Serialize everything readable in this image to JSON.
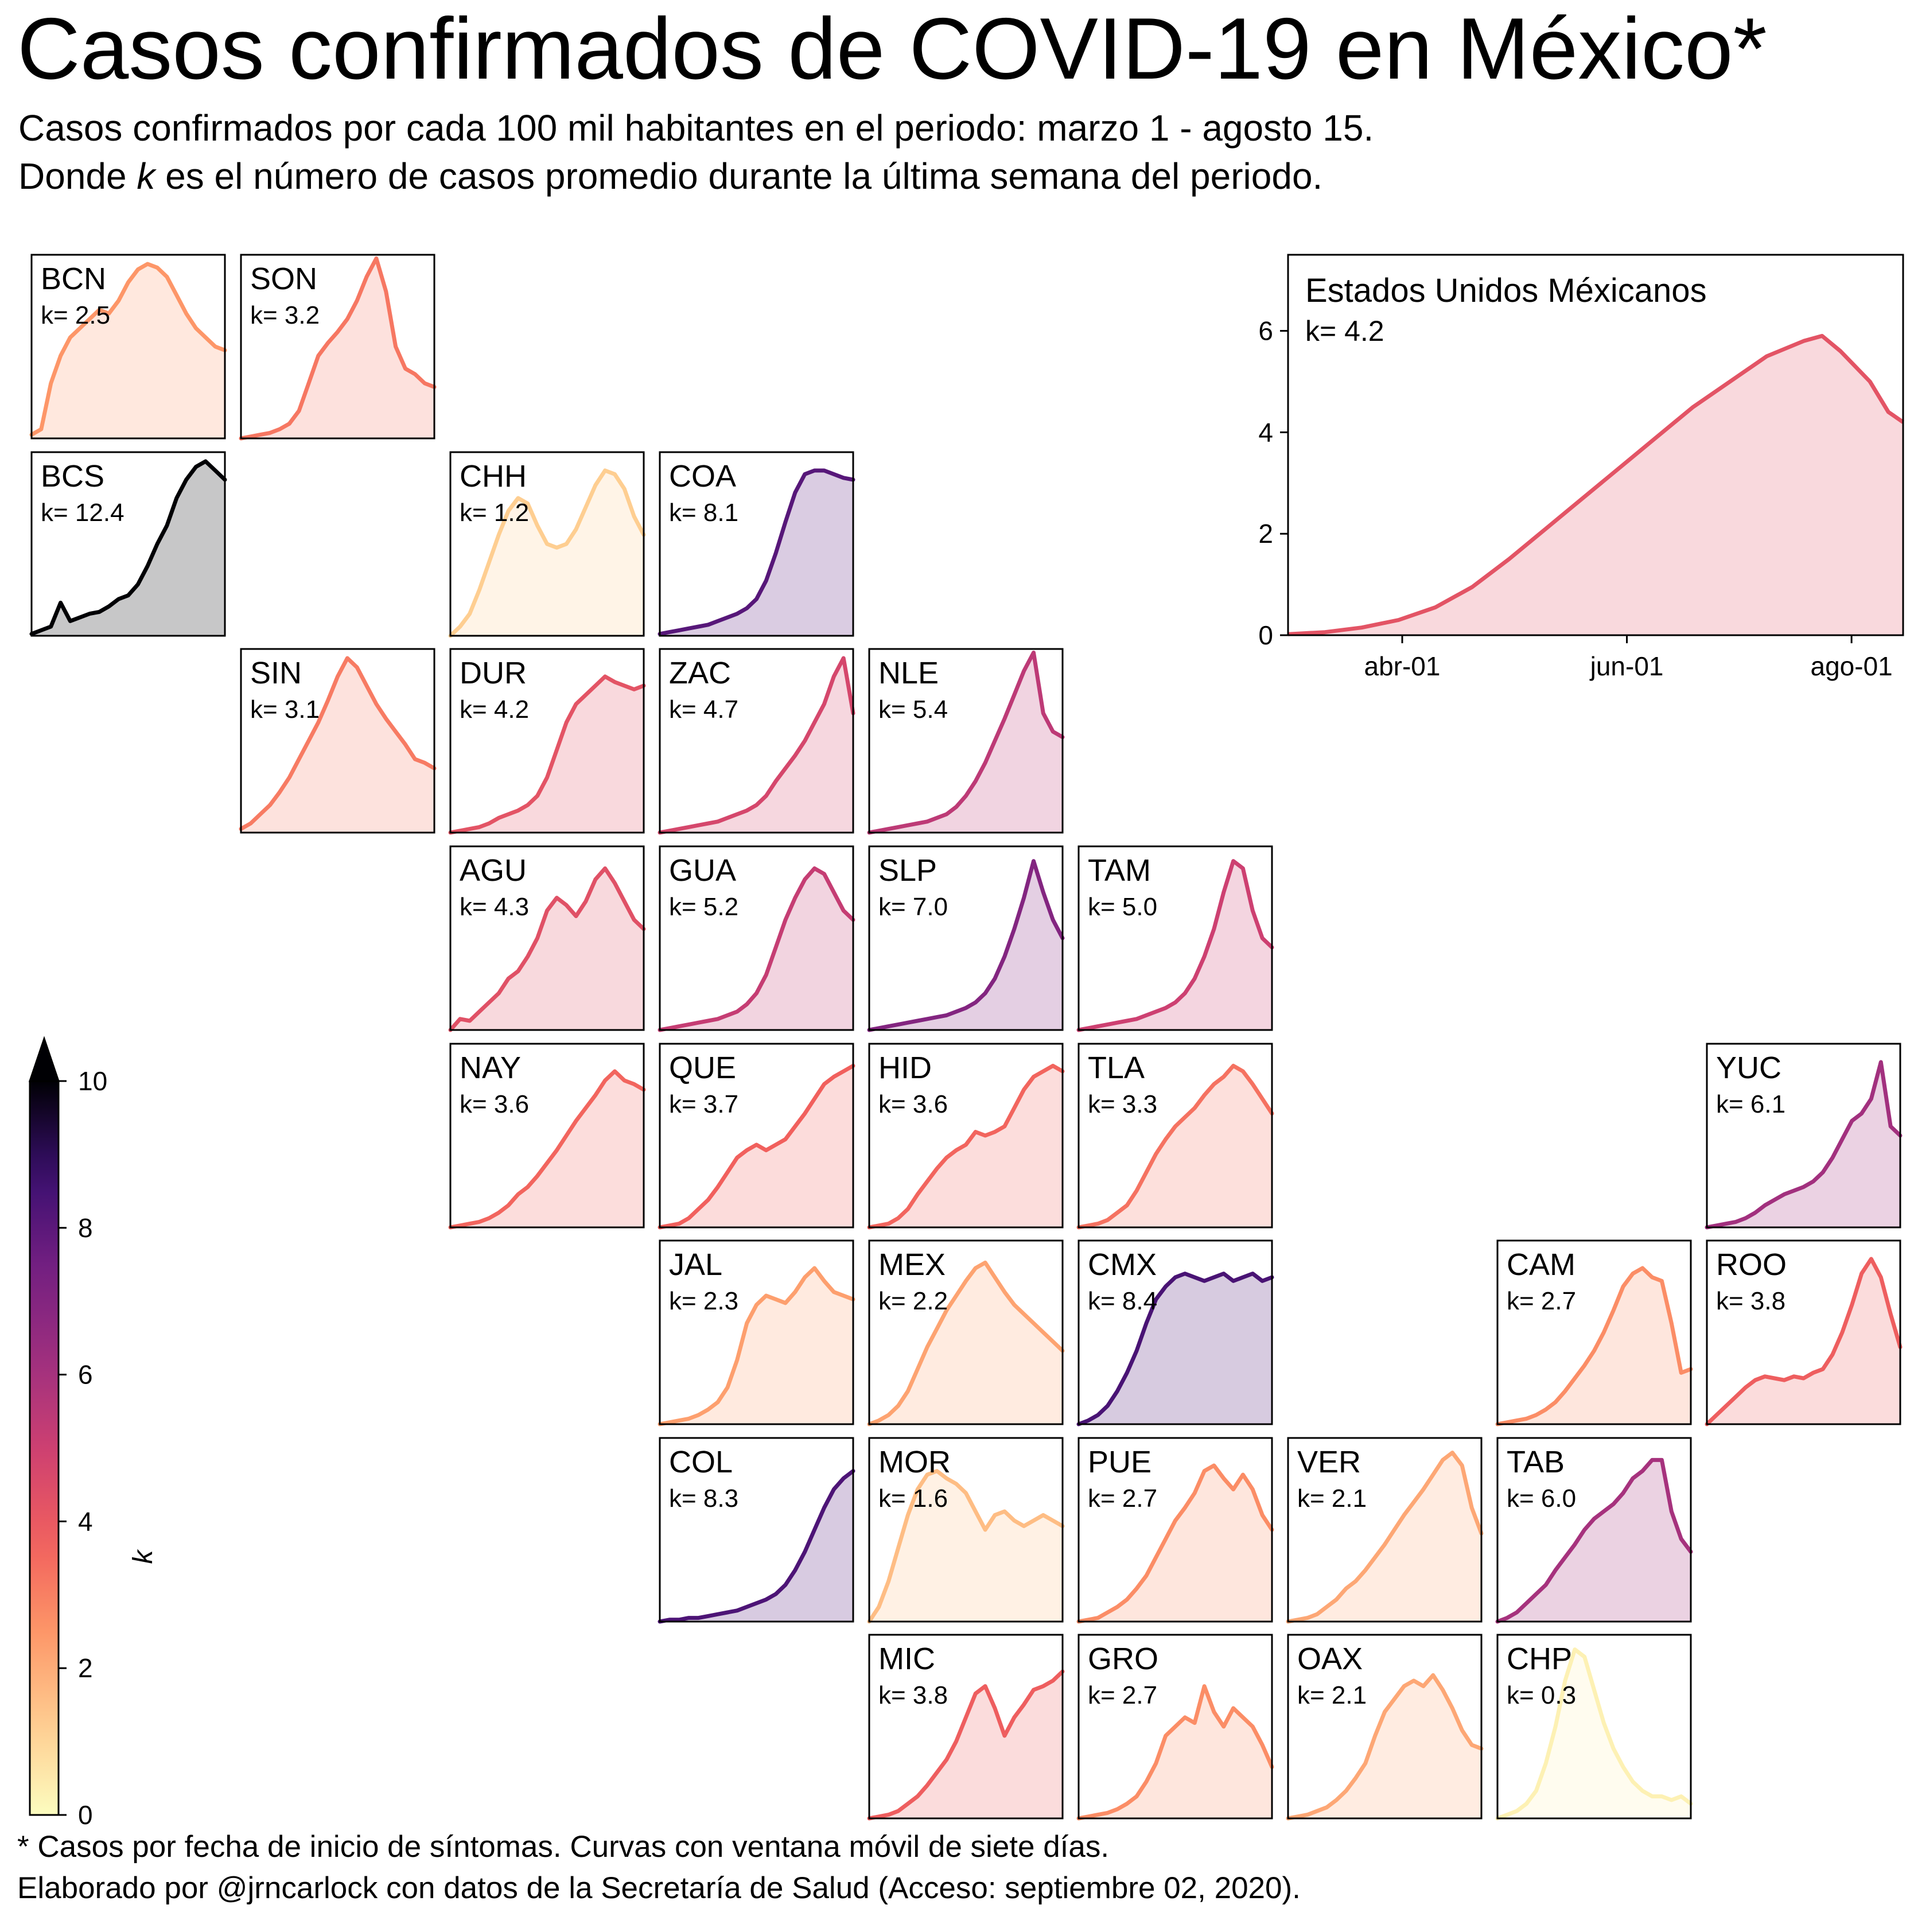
{
  "title": "Casos confirmados de COVID-19 en México*",
  "subtitle_line1": "Casos confirmados por cada 100 mil habitantes en el periodo: marzo 1 - agosto 15.",
  "subtitle_line2_pre": "Donde ",
  "subtitle_line2_var": "k",
  "subtitle_line2_post": " es el  número de casos promedio durante la última semana del periodo.",
  "footnote_line1": "* Casos por fecha de inicio de síntomas. Curvas con ventana móvil de siete días.",
  "footnote_line2": "Elaborado por @jrncarlock con datos de la Secretaría de Salud (Acceso: septiembre 02, 2020).",
  "chart_data": [
    {
      "type": "area",
      "name": "Estados Unidos Méxicanos",
      "k_label": "k= 4.2",
      "k": 4.2,
      "x_ticks": [
        "abr-01",
        "jun-01",
        "ago-01"
      ],
      "x_tick_days": [
        31,
        92,
        153
      ],
      "x_range_days": [
        0,
        167
      ],
      "ylim": [
        0,
        7.5
      ],
      "y_ticks": [
        0,
        2,
        4,
        6
      ],
      "smoothed_values": [
        {
          "day": 0,
          "y": 0.02
        },
        {
          "day": 10,
          "y": 0.06
        },
        {
          "day": 20,
          "y": 0.15
        },
        {
          "day": 30,
          "y": 0.3
        },
        {
          "day": 40,
          "y": 0.55
        },
        {
          "day": 50,
          "y": 0.95
        },
        {
          "day": 60,
          "y": 1.5
        },
        {
          "day": 70,
          "y": 2.1
        },
        {
          "day": 80,
          "y": 2.7
        },
        {
          "day": 90,
          "y": 3.3
        },
        {
          "day": 100,
          "y": 3.9
        },
        {
          "day": 110,
          "y": 4.5
        },
        {
          "day": 120,
          "y": 5.0
        },
        {
          "day": 130,
          "y": 5.5
        },
        {
          "day": 140,
          "y": 5.8
        },
        {
          "day": 145,
          "y": 5.9
        },
        {
          "day": 150,
          "y": 5.6
        },
        {
          "day": 158,
          "y": 5.0
        },
        {
          "day": 163,
          "y": 4.4
        },
        {
          "day": 167,
          "y": 4.2
        }
      ]
    },
    {
      "type": "area",
      "name": "small multiples by state",
      "panels": [
        {
          "state": "BCN",
          "k_label": "k= 2.5",
          "k": 2.5,
          "shape": [
            0.02,
            0.05,
            0.3,
            0.45,
            0.55,
            0.6,
            0.65,
            0.7,
            0.68,
            0.75,
            0.85,
            0.92,
            0.95,
            0.93,
            0.88,
            0.78,
            0.68,
            0.6,
            0.55,
            0.5,
            0.48
          ]
        },
        {
          "state": "SON",
          "k_label": "k= 3.2",
          "k": 3.2,
          "shape": [
            0.0,
            0.01,
            0.02,
            0.03,
            0.05,
            0.08,
            0.15,
            0.3,
            0.45,
            0.52,
            0.58,
            0.65,
            0.75,
            0.88,
            0.98,
            0.8,
            0.5,
            0.38,
            0.35,
            0.3,
            0.28
          ]
        },
        {
          "state": "BCS",
          "k_label": "k= 12.4",
          "k": 12.4,
          "shape": [
            0.01,
            0.03,
            0.05,
            0.18,
            0.08,
            0.1,
            0.12,
            0.13,
            0.16,
            0.2,
            0.22,
            0.28,
            0.38,
            0.5,
            0.6,
            0.75,
            0.85,
            0.92,
            0.95,
            0.9,
            0.85
          ]
        },
        {
          "state": "CHH",
          "k_label": "k= 1.2",
          "k": 1.2,
          "shape": [
            0.0,
            0.05,
            0.12,
            0.25,
            0.4,
            0.55,
            0.68,
            0.75,
            0.72,
            0.6,
            0.5,
            0.48,
            0.5,
            0.58,
            0.7,
            0.82,
            0.9,
            0.88,
            0.8,
            0.65,
            0.55
          ]
        },
        {
          "state": "COA",
          "k_label": "k= 8.1",
          "k": 8.1,
          "shape": [
            0.01,
            0.02,
            0.03,
            0.04,
            0.05,
            0.06,
            0.08,
            0.1,
            0.12,
            0.15,
            0.2,
            0.3,
            0.45,
            0.62,
            0.78,
            0.88,
            0.9,
            0.9,
            0.88,
            0.86,
            0.85
          ]
        },
        {
          "state": "SIN",
          "k_label": "k= 3.1",
          "k": 3.1,
          "shape": [
            0.02,
            0.05,
            0.1,
            0.15,
            0.22,
            0.3,
            0.4,
            0.5,
            0.6,
            0.72,
            0.85,
            0.95,
            0.9,
            0.8,
            0.7,
            0.62,
            0.55,
            0.48,
            0.4,
            0.38,
            0.35
          ]
        },
        {
          "state": "DUR",
          "k_label": "k= 4.2",
          "k": 4.2,
          "shape": [
            0.0,
            0.01,
            0.02,
            0.03,
            0.05,
            0.08,
            0.1,
            0.12,
            0.15,
            0.2,
            0.3,
            0.45,
            0.6,
            0.7,
            0.75,
            0.8,
            0.85,
            0.82,
            0.8,
            0.78,
            0.8
          ]
        },
        {
          "state": "ZAC",
          "k_label": "k= 4.7",
          "k": 4.7,
          "shape": [
            0.0,
            0.01,
            0.02,
            0.03,
            0.04,
            0.05,
            0.06,
            0.08,
            0.1,
            0.12,
            0.15,
            0.2,
            0.28,
            0.35,
            0.42,
            0.5,
            0.6,
            0.7,
            0.85,
            0.95,
            0.65
          ]
        },
        {
          "state": "NLE",
          "k_label": "k= 5.4",
          "k": 5.4,
          "shape": [
            0.0,
            0.01,
            0.02,
            0.03,
            0.04,
            0.05,
            0.06,
            0.08,
            0.1,
            0.14,
            0.2,
            0.28,
            0.38,
            0.5,
            0.62,
            0.75,
            0.88,
            0.98,
            0.65,
            0.55,
            0.52
          ]
        },
        {
          "state": "AGU",
          "k_label": "k= 4.3",
          "k": 4.3,
          "shape": [
            0.0,
            0.06,
            0.05,
            0.1,
            0.15,
            0.2,
            0.28,
            0.32,
            0.4,
            0.5,
            0.65,
            0.72,
            0.68,
            0.62,
            0.7,
            0.82,
            0.88,
            0.8,
            0.7,
            0.6,
            0.55
          ]
        },
        {
          "state": "GUA",
          "k_label": "k= 5.2",
          "k": 5.2,
          "shape": [
            0.0,
            0.01,
            0.02,
            0.03,
            0.04,
            0.05,
            0.06,
            0.08,
            0.1,
            0.14,
            0.2,
            0.3,
            0.45,
            0.6,
            0.72,
            0.82,
            0.88,
            0.85,
            0.75,
            0.65,
            0.6
          ]
        },
        {
          "state": "SLP",
          "k_label": "k= 7.0",
          "k": 7.0,
          "shape": [
            0.0,
            0.01,
            0.02,
            0.03,
            0.04,
            0.05,
            0.06,
            0.07,
            0.08,
            0.1,
            0.12,
            0.15,
            0.2,
            0.28,
            0.4,
            0.55,
            0.72,
            0.92,
            0.75,
            0.6,
            0.5
          ]
        },
        {
          "state": "TAM",
          "k_label": "k= 5.0",
          "k": 5.0,
          "shape": [
            0.0,
            0.01,
            0.02,
            0.03,
            0.04,
            0.05,
            0.06,
            0.08,
            0.1,
            0.12,
            0.15,
            0.2,
            0.28,
            0.4,
            0.55,
            0.75,
            0.92,
            0.88,
            0.65,
            0.5,
            0.45
          ]
        },
        {
          "state": "NAY",
          "k_label": "k= 3.6",
          "k": 3.6,
          "shape": [
            0.0,
            0.01,
            0.02,
            0.03,
            0.05,
            0.08,
            0.12,
            0.18,
            0.22,
            0.28,
            0.35,
            0.42,
            0.5,
            0.58,
            0.65,
            0.72,
            0.8,
            0.85,
            0.8,
            0.78,
            0.75
          ]
        },
        {
          "state": "QUE",
          "k_label": "k= 3.7",
          "k": 3.7,
          "shape": [
            0.0,
            0.01,
            0.02,
            0.05,
            0.1,
            0.15,
            0.22,
            0.3,
            0.38,
            0.42,
            0.45,
            0.42,
            0.45,
            0.48,
            0.55,
            0.62,
            0.7,
            0.78,
            0.82,
            0.85,
            0.88
          ]
        },
        {
          "state": "HID",
          "k_label": "k= 3.6",
          "k": 3.6,
          "shape": [
            0.0,
            0.01,
            0.02,
            0.05,
            0.1,
            0.18,
            0.25,
            0.32,
            0.38,
            0.42,
            0.45,
            0.52,
            0.5,
            0.52,
            0.55,
            0.65,
            0.75,
            0.82,
            0.85,
            0.88,
            0.85
          ]
        },
        {
          "state": "TLA",
          "k_label": "k= 3.3",
          "k": 3.3,
          "shape": [
            0.0,
            0.01,
            0.02,
            0.04,
            0.08,
            0.12,
            0.2,
            0.3,
            0.4,
            0.48,
            0.55,
            0.6,
            0.65,
            0.72,
            0.78,
            0.82,
            0.88,
            0.85,
            0.78,
            0.7,
            0.62
          ]
        },
        {
          "state": "YUC",
          "k_label": "k= 6.1",
          "k": 6.1,
          "shape": [
            0.0,
            0.01,
            0.02,
            0.03,
            0.05,
            0.08,
            0.12,
            0.15,
            0.18,
            0.2,
            0.22,
            0.25,
            0.3,
            0.38,
            0.48,
            0.58,
            0.62,
            0.7,
            0.9,
            0.55,
            0.5
          ]
        },
        {
          "state": "JAL",
          "k_label": "k= 2.3",
          "k": 2.3,
          "shape": [
            0.0,
            0.01,
            0.02,
            0.03,
            0.05,
            0.08,
            0.12,
            0.2,
            0.35,
            0.55,
            0.65,
            0.7,
            0.68,
            0.66,
            0.72,
            0.8,
            0.85,
            0.78,
            0.72,
            0.7,
            0.68
          ]
        },
        {
          "state": "MEX",
          "k_label": "k= 2.2",
          "k": 2.2,
          "shape": [
            0.0,
            0.02,
            0.05,
            0.1,
            0.18,
            0.3,
            0.42,
            0.52,
            0.62,
            0.7,
            0.78,
            0.85,
            0.88,
            0.8,
            0.72,
            0.65,
            0.6,
            0.55,
            0.5,
            0.45,
            0.4
          ]
        },
        {
          "state": "CMX",
          "k_label": "k= 8.4",
          "k": 8.4,
          "shape": [
            0.0,
            0.02,
            0.05,
            0.1,
            0.18,
            0.28,
            0.4,
            0.55,
            0.68,
            0.75,
            0.8,
            0.82,
            0.8,
            0.78,
            0.8,
            0.82,
            0.78,
            0.8,
            0.82,
            0.78,
            0.8
          ]
        },
        {
          "state": "CAM",
          "k_label": "k= 2.7",
          "k": 2.7,
          "shape": [
            0.0,
            0.01,
            0.02,
            0.03,
            0.05,
            0.08,
            0.12,
            0.18,
            0.25,
            0.32,
            0.4,
            0.5,
            0.62,
            0.75,
            0.82,
            0.85,
            0.8,
            0.78,
            0.55,
            0.28,
            0.3
          ]
        },
        {
          "state": "ROO",
          "k_label": "k= 3.8",
          "k": 3.8,
          "shape": [
            0.0,
            0.05,
            0.1,
            0.15,
            0.2,
            0.24,
            0.26,
            0.25,
            0.24,
            0.26,
            0.25,
            0.28,
            0.3,
            0.38,
            0.5,
            0.65,
            0.82,
            0.9,
            0.8,
            0.6,
            0.42
          ]
        },
        {
          "state": "COL",
          "k_label": "k= 8.3",
          "k": 8.3,
          "shape": [
            0.0,
            0.01,
            0.01,
            0.02,
            0.02,
            0.03,
            0.04,
            0.05,
            0.06,
            0.08,
            0.1,
            0.12,
            0.15,
            0.2,
            0.28,
            0.38,
            0.5,
            0.62,
            0.72,
            0.78,
            0.82
          ]
        },
        {
          "state": "MOR",
          "k_label": "k= 1.6",
          "k": 1.6,
          "shape": [
            0.0,
            0.08,
            0.22,
            0.4,
            0.58,
            0.72,
            0.8,
            0.82,
            0.78,
            0.75,
            0.7,
            0.6,
            0.5,
            0.58,
            0.6,
            0.55,
            0.52,
            0.55,
            0.58,
            0.55,
            0.52
          ]
        },
        {
          "state": "PUE",
          "k_label": "k= 2.7",
          "k": 2.7,
          "shape": [
            0.0,
            0.01,
            0.02,
            0.05,
            0.08,
            0.12,
            0.18,
            0.25,
            0.35,
            0.45,
            0.55,
            0.62,
            0.7,
            0.82,
            0.85,
            0.78,
            0.72,
            0.8,
            0.72,
            0.58,
            0.5
          ]
        },
        {
          "state": "VER",
          "k_label": "k= 2.1",
          "k": 2.1,
          "shape": [
            0.0,
            0.01,
            0.02,
            0.04,
            0.08,
            0.12,
            0.18,
            0.22,
            0.28,
            0.35,
            0.42,
            0.5,
            0.58,
            0.65,
            0.72,
            0.8,
            0.88,
            0.92,
            0.85,
            0.62,
            0.48
          ]
        },
        {
          "state": "TAB",
          "k_label": "k= 6.0",
          "k": 6.0,
          "shape": [
            0.0,
            0.02,
            0.05,
            0.1,
            0.15,
            0.2,
            0.28,
            0.35,
            0.42,
            0.5,
            0.56,
            0.6,
            0.64,
            0.7,
            0.78,
            0.82,
            0.88,
            0.88,
            0.6,
            0.45,
            0.38
          ]
        },
        {
          "state": "MIC",
          "k_label": "k= 3.8",
          "k": 3.8,
          "shape": [
            0.0,
            0.01,
            0.02,
            0.04,
            0.08,
            0.12,
            0.18,
            0.25,
            0.32,
            0.42,
            0.55,
            0.68,
            0.72,
            0.6,
            0.45,
            0.55,
            0.62,
            0.7,
            0.72,
            0.75,
            0.8
          ]
        },
        {
          "state": "GRO",
          "k_label": "k= 2.7",
          "k": 2.7,
          "shape": [
            0.0,
            0.01,
            0.02,
            0.03,
            0.05,
            0.08,
            0.12,
            0.2,
            0.3,
            0.45,
            0.5,
            0.55,
            0.52,
            0.72,
            0.58,
            0.5,
            0.6,
            0.55,
            0.5,
            0.4,
            0.28
          ]
        },
        {
          "state": "OAX",
          "k_label": "k= 2.1",
          "k": 2.1,
          "shape": [
            0.0,
            0.01,
            0.02,
            0.04,
            0.06,
            0.1,
            0.15,
            0.22,
            0.3,
            0.45,
            0.58,
            0.65,
            0.72,
            0.75,
            0.72,
            0.78,
            0.7,
            0.6,
            0.48,
            0.4,
            0.38
          ]
        },
        {
          "state": "CHP",
          "k_label": "k= 0.3",
          "k": 0.3,
          "shape": [
            0.0,
            0.02,
            0.04,
            0.08,
            0.15,
            0.3,
            0.5,
            0.75,
            0.92,
            0.88,
            0.7,
            0.52,
            0.38,
            0.28,
            0.2,
            0.15,
            0.12,
            0.12,
            0.1,
            0.12,
            0.08
          ]
        }
      ]
    },
    {
      "type": "heatmap",
      "name": "colorbar",
      "label": "k",
      "range": [
        0,
        10
      ],
      "ticks": [
        0,
        2,
        4,
        6,
        8,
        10
      ],
      "extend": "max",
      "colormap": "magma_r"
    }
  ]
}
